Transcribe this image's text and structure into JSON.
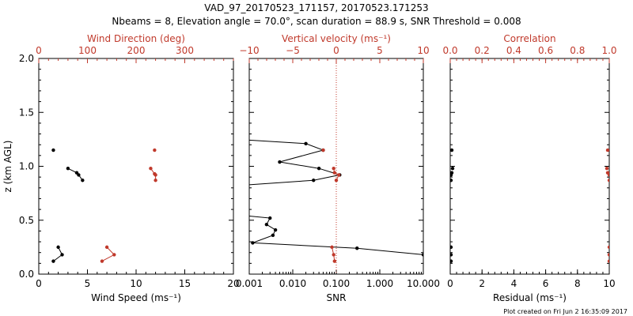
{
  "header": {
    "title_line1": "VAD_97_20170523_171157, 20170523.171253",
    "title_line2": "Nbeams = 8, Elevation angle = 70.0°, scan duration = 88.9 s, SNR Threshold = 0.008"
  },
  "footer": {
    "created": "Plot created on Fri Jun  2 16:35:09 2017"
  },
  "colors": {
    "black": "#000000",
    "red": "#c0392b"
  },
  "chart_data": [
    {
      "type": "line",
      "panel": "left",
      "ylabel": "z (km AGL)",
      "ylim": [
        0,
        2
      ],
      "y_ticks": [
        "0.0",
        "0.5",
        "1.0",
        "1.5",
        "2.0"
      ],
      "bottom_axis": {
        "label": "Wind Speed (ms⁻¹)",
        "range": [
          0,
          20
        ],
        "ticks": [
          "0",
          "5",
          "10",
          "15",
          "20"
        ]
      },
      "top_axis": {
        "label": "Wind Direction (deg)",
        "range": [
          0,
          400
        ],
        "ticks": [
          "0",
          "100",
          "200",
          "300"
        ]
      },
      "series": [
        {
          "name": "Wind Speed",
          "axis": "bottom",
          "color": "#000000",
          "segments": [
            [
              {
                "x": 1.5,
                "y": 1.15
              }
            ],
            [
              {
                "x": 3.0,
                "y": 0.98
              },
              {
                "x": 3.9,
                "y": 0.94
              },
              {
                "x": 4.1,
                "y": 0.92
              },
              {
                "x": 4.5,
                "y": 0.87
              }
            ],
            [
              {
                "x": 2.0,
                "y": 0.25
              },
              {
                "x": 2.4,
                "y": 0.18
              },
              {
                "x": 1.5,
                "y": 0.12
              }
            ]
          ]
        },
        {
          "name": "Wind Direction",
          "axis": "top",
          "color": "#c0392b",
          "segments": [
            [
              {
                "x": 238,
                "y": 1.15
              }
            ],
            [
              {
                "x": 230,
                "y": 0.98
              },
              {
                "x": 238,
                "y": 0.93
              },
              {
                "x": 240,
                "y": 0.92
              },
              {
                "x": 240,
                "y": 0.87
              }
            ],
            [
              {
                "x": 140,
                "y": 0.25
              },
              {
                "x": 155,
                "y": 0.18
              },
              {
                "x": 130,
                "y": 0.12
              }
            ]
          ]
        }
      ]
    },
    {
      "type": "line",
      "panel": "middle",
      "ylim": [
        0,
        2
      ],
      "bottom_axis": {
        "label": "SNR",
        "scale": "log",
        "range": [
          0.001,
          10
        ],
        "ticks": [
          "0.001",
          "0.010",
          "0.100",
          "1.000",
          "10.000"
        ]
      },
      "top_axis": {
        "label": "Vertical velocity (ms⁻¹)",
        "range": [
          -10,
          10
        ],
        "ticks": [
          "−10",
          "−5",
          "0",
          "5",
          "10"
        ]
      },
      "reference_line": {
        "axis": "top",
        "x": 0,
        "style": "dotted",
        "color": "#c0392b"
      },
      "series": [
        {
          "name": "SNR",
          "axis": "bottom",
          "color": "#000000",
          "segments": [
            [
              {
                "x": 0.0005,
                "y": 1.25
              },
              {
                "x": 0.02,
                "y": 1.21
              },
              {
                "x": 0.05,
                "y": 1.15
              },
              {
                "x": 0.005,
                "y": 1.04
              },
              {
                "x": 0.04,
                "y": 0.98
              },
              {
                "x": 0.12,
                "y": 0.92
              },
              {
                "x": 0.03,
                "y": 0.87
              },
              {
                "x": 0.0005,
                "y": 0.82
              }
            ],
            [
              {
                "x": 0.0005,
                "y": 0.55
              },
              {
                "x": 0.003,
                "y": 0.52
              },
              {
                "x": 0.0025,
                "y": 0.46
              },
              {
                "x": 0.004,
                "y": 0.41
              },
              {
                "x": 0.0035,
                "y": 0.36
              },
              {
                "x": 0.0012,
                "y": 0.29
              },
              {
                "x": 0.3,
                "y": 0.24
              },
              {
                "x": 10,
                "y": 0.18
              }
            ]
          ]
        },
        {
          "name": "Vertical velocity",
          "axis": "top",
          "color": "#c0392b",
          "segments": [
            [
              {
                "x": -1.5,
                "y": 1.15
              }
            ],
            [
              {
                "x": -0.3,
                "y": 0.98
              },
              {
                "x": -0.2,
                "y": 0.94
              },
              {
                "x": 0.3,
                "y": 0.92
              },
              {
                "x": 0.0,
                "y": 0.87
              }
            ],
            [
              {
                "x": -0.5,
                "y": 0.25
              },
              {
                "x": -0.3,
                "y": 0.18
              },
              {
                "x": -0.2,
                "y": 0.12
              }
            ]
          ]
        }
      ]
    },
    {
      "type": "scatter",
      "panel": "right",
      "ylim": [
        0,
        2
      ],
      "bottom_axis": {
        "label": "Residual (ms⁻¹)",
        "range": [
          0,
          10
        ],
        "ticks": [
          "0",
          "2",
          "4",
          "6",
          "8",
          "10"
        ]
      },
      "top_axis": {
        "label": "Correlation",
        "range": [
          0,
          1
        ],
        "ticks": [
          "0.0",
          "0.2",
          "0.4",
          "0.6",
          "0.8",
          "1.0"
        ]
      },
      "series": [
        {
          "name": "Residual",
          "axis": "bottom",
          "color": "#000000",
          "points": [
            {
              "x": 0.1,
              "y": 1.15
            },
            {
              "x": 0.15,
              "y": 0.98
            },
            {
              "x": 0.1,
              "y": 0.94
            },
            {
              "x": 0.05,
              "y": 0.92
            },
            {
              "x": 0.05,
              "y": 0.87
            },
            {
              "x": 0.05,
              "y": 0.25
            },
            {
              "x": 0.05,
              "y": 0.18
            },
            {
              "x": 0.05,
              "y": 0.12
            }
          ]
        },
        {
          "name": "Correlation",
          "axis": "top",
          "color": "#c0392b",
          "points": [
            {
              "x": 0.99,
              "y": 1.15
            },
            {
              "x": 0.985,
              "y": 0.98
            },
            {
              "x": 0.99,
              "y": 0.94
            },
            {
              "x": 1.0,
              "y": 0.92
            },
            {
              "x": 1.0,
              "y": 0.87
            },
            {
              "x": 1.0,
              "y": 0.25
            },
            {
              "x": 1.0,
              "y": 0.18
            },
            {
              "x": 1.0,
              "y": 0.12
            }
          ]
        }
      ]
    }
  ]
}
